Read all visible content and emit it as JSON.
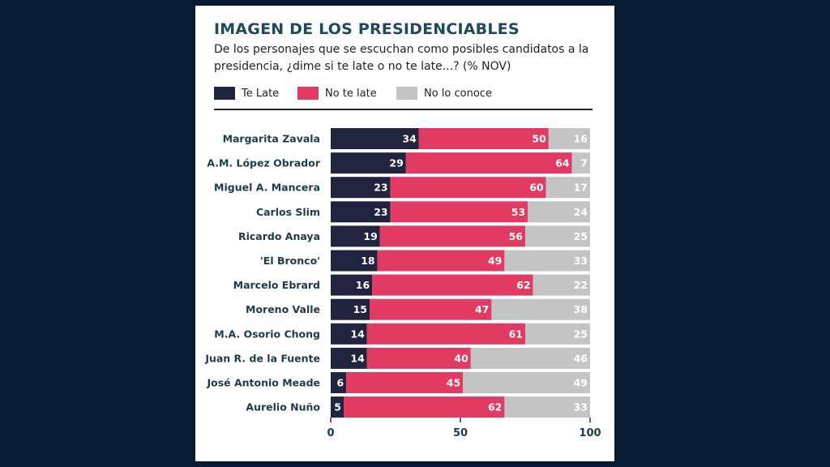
{
  "colors": {
    "te_late": "#20243f",
    "no_te_late": "#e23b63",
    "no_lo_conoce": "#c4c4c4",
    "background": "#081a33"
  },
  "chart_data": {
    "type": "bar",
    "orientation": "horizontal",
    "stacked": true,
    "title": "IMAGEN DE LOS PRESIDENCIABLES",
    "subtitle": "De los personajes que se escuchan como posibles candidatos a la presidencia, ¿dime si te late o no te late...? (% NOV)",
    "categories": [
      "Margarita Zavala",
      "A.M. López Obrador",
      "Miguel A. Mancera",
      "Carlos Slim",
      "Ricardo Anaya",
      "'El Bronco'",
      "Marcelo Ebrard",
      "Moreno Valle",
      "M.A. Osorio Chong",
      "Juan R. de la Fuente",
      "José Antonio Meade",
      "Aurelio Nuño"
    ],
    "series": [
      {
        "name": "Te Late",
        "values": [
          34,
          29,
          23,
          23,
          19,
          18,
          16,
          15,
          14,
          14,
          6,
          5
        ]
      },
      {
        "name": "No te late",
        "values": [
          50,
          64,
          60,
          53,
          56,
          49,
          62,
          47,
          61,
          40,
          45,
          62
        ]
      },
      {
        "name": "No lo conoce",
        "values": [
          16,
          7,
          17,
          24,
          25,
          33,
          22,
          38,
          25,
          46,
          49,
          33
        ]
      }
    ],
    "xlim": [
      0,
      100
    ],
    "xticks": [
      "0",
      "50",
      "100"
    ],
    "legend": "top-left",
    "grid": false
  }
}
